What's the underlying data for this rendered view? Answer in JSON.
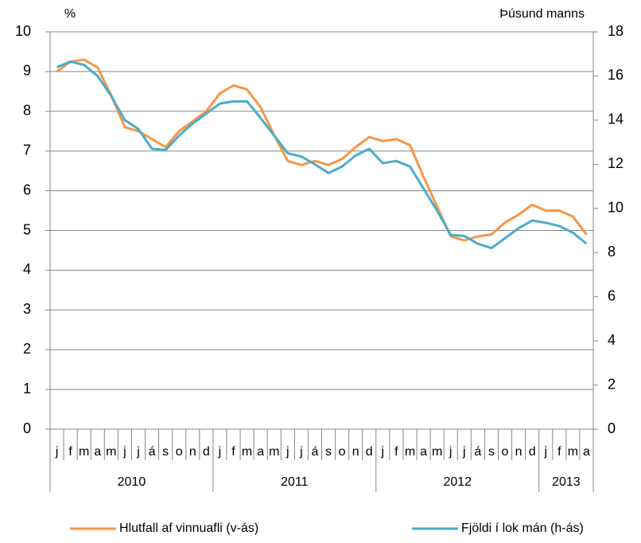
{
  "chart_data": {
    "type": "line",
    "y_label": "%",
    "y2_label": "Þúsund manns",
    "category_groups": [
      {
        "name": "2010",
        "categories": [
          "j",
          "f",
          "m",
          "a",
          "m",
          "j",
          "j",
          "á",
          "s",
          "o",
          "n",
          "d"
        ]
      },
      {
        "name": "2011",
        "categories": [
          "j",
          "f",
          "m",
          "a",
          "m",
          "j",
          "j",
          "á",
          "s",
          "o",
          "n",
          "d"
        ]
      },
      {
        "name": "2012",
        "categories": [
          "j",
          "f",
          "m",
          "a",
          "m",
          "j",
          "j",
          "á",
          "s",
          "o",
          "n",
          "d"
        ]
      },
      {
        "name": "2013",
        "categories": [
          "j",
          "f",
          "m",
          "a"
        ]
      }
    ],
    "series": [
      {
        "name": "Hlutfall af vinnuafli (v-ás)",
        "color": "#f79646",
        "axis": "y",
        "values": [
          9.0,
          9.25,
          9.3,
          9.1,
          8.4,
          7.6,
          7.5,
          7.3,
          7.1,
          7.5,
          7.75,
          8.0,
          8.45,
          8.65,
          8.55,
          8.1,
          7.4,
          6.75,
          6.65,
          6.75,
          6.65,
          6.8,
          7.1,
          7.35,
          7.25,
          7.3,
          7.15,
          6.35,
          5.6,
          4.85,
          4.75,
          4.85,
          4.9,
          5.2,
          5.4,
          5.65,
          5.5,
          5.5,
          5.35,
          4.9
        ]
      },
      {
        "name": "Fjöldi í lok mán (h-ás)",
        "color": "#4bacc6",
        "axis": "y2",
        "values": [
          16.4,
          16.65,
          16.5,
          16.0,
          15.1,
          14.0,
          13.6,
          12.7,
          12.65,
          13.3,
          13.85,
          14.3,
          14.75,
          14.85,
          14.85,
          14.1,
          13.3,
          12.5,
          12.35,
          12.0,
          11.6,
          11.9,
          12.4,
          12.7,
          12.05,
          12.15,
          11.9,
          10.9,
          9.9,
          8.8,
          8.75,
          8.4,
          8.2,
          8.65,
          9.1,
          9.45,
          9.35,
          9.2,
          8.9,
          8.4
        ]
      }
    ],
    "ylim": [
      0,
      10
    ],
    "yticks": [
      0,
      1,
      2,
      3,
      4,
      5,
      6,
      7,
      8,
      9,
      10
    ],
    "y2lim": [
      0,
      18
    ],
    "y2ticks": [
      0,
      2,
      4,
      6,
      8,
      10,
      12,
      14,
      16,
      18
    ],
    "grid": true
  }
}
